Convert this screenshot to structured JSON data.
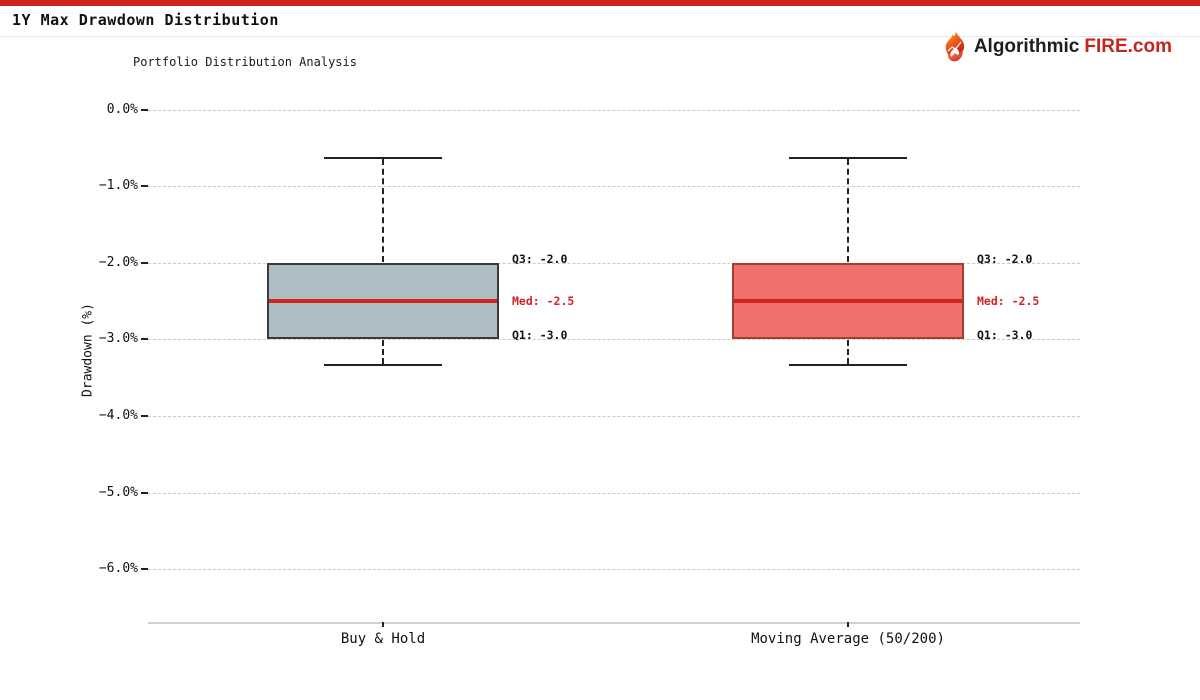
{
  "page": {
    "title": "1Y Max Drawdown Distribution"
  },
  "branding": {
    "logo_text_dark": "Algorithmic",
    "logo_text_red": "FIRE.com"
  },
  "colors": {
    "top_bar": "#cb2420",
    "logo_red": "#c4261d",
    "median_line": "#d02420",
    "annotation_text": "#111111",
    "annotation_median_text": "#d02420",
    "gridline": "#c9c9c9",
    "box1_fill": "#aebdc4",
    "box1_border": "#3a3a3a",
    "box2_fill": "#f0716b",
    "box2_border": "#a63c31"
  },
  "chart_data": {
    "type": "box",
    "title": "Portfolio Distribution Analysis",
    "xlabel": "",
    "ylabel": "Drawdown (%)",
    "ylim": [
      -6.7,
      0.2
    ],
    "yticks": [
      0.0,
      -1.0,
      -2.0,
      -3.0,
      -4.0,
      -5.0,
      -6.0
    ],
    "ytick_labels": [
      "0.0%",
      "−1.0%",
      "−2.0%",
      "−3.0%",
      "−4.0%",
      "−5.0%",
      "−6.0%"
    ],
    "grid": "horizontal-dashed",
    "legend": "none",
    "categories": [
      "Buy & Hold",
      "Moving Average (50/200)"
    ],
    "series": [
      {
        "name": "Buy & Hold",
        "whisker_high": -0.63,
        "q3": -2.0,
        "median": -2.5,
        "q1": -3.0,
        "whisker_low": -3.33,
        "box_fill": "#aebdc4",
        "box_border": "#3a3a3a",
        "annotations": [
          "Q3: -2.0",
          "Med: -2.5",
          "Q1: -3.0"
        ]
      },
      {
        "name": "Moving Average (50/200)",
        "whisker_high": -0.63,
        "q3": -2.0,
        "median": -2.5,
        "q1": -3.0,
        "whisker_low": -3.33,
        "box_fill": "#f0716b",
        "box_border": "#a63c31",
        "annotations": [
          "Q3: -2.0",
          "Med: -2.5",
          "Q1: -3.0"
        ]
      }
    ]
  }
}
